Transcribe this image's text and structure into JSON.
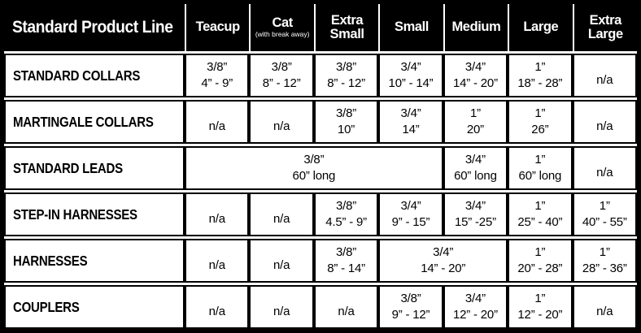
{
  "chart_data": {
    "type": "table",
    "title": "Standard Product Line",
    "legend_position": "none",
    "grid": "on",
    "colors": {
      "header_bg": "#000000",
      "header_text": "#ffffff",
      "cell_bg": "#ffffff",
      "border": "#000000",
      "text": "#000000"
    },
    "na_text": "n/a",
    "columns": [
      {
        "label": "Teacup",
        "sub": ""
      },
      {
        "label": "Cat",
        "sub": "(with break away)"
      },
      {
        "label": "Extra Small",
        "sub": ""
      },
      {
        "label": "Small",
        "sub": ""
      },
      {
        "label": "Medium",
        "sub": ""
      },
      {
        "label": "Large",
        "sub": ""
      },
      {
        "label": "Extra Large",
        "sub": ""
      }
    ],
    "rows": [
      {
        "label": "STANDARD COLLARS",
        "cells": [
          {
            "text": "3/8”\n4” - 9”",
            "span": 1
          },
          {
            "text": "3/8”\n8” - 12”",
            "span": 1
          },
          {
            "text": "3/8”\n8” - 12”",
            "span": 1
          },
          {
            "text": "3/4”\n10” - 14”",
            "span": 1
          },
          {
            "text": "3/4”\n14” - 20”",
            "span": 1
          },
          {
            "text": "1”\n18” - 28”",
            "span": 1
          },
          {
            "text": "n/a",
            "span": 1,
            "na": true
          }
        ]
      },
      {
        "label": "MARTINGALE COLLARS",
        "cells": [
          {
            "text": "n/a",
            "span": 1,
            "na": true
          },
          {
            "text": "n/a",
            "span": 1,
            "na": true
          },
          {
            "text": "3/8”\n10”",
            "span": 1
          },
          {
            "text": "3/4”\n14”",
            "span": 1
          },
          {
            "text": "1”\n20”",
            "span": 1
          },
          {
            "text": "1”\n26”",
            "span": 1
          },
          {
            "text": "n/a",
            "span": 1,
            "na": true
          }
        ]
      },
      {
        "label": "STANDARD LEADS",
        "cells": [
          {
            "text": "3/8”\n60” long",
            "span": 4
          },
          {
            "text": "3/4”\n60” long",
            "span": 1
          },
          {
            "text": "1”\n60” long",
            "span": 1
          },
          {
            "text": "n/a",
            "span": 1,
            "na": true
          }
        ]
      },
      {
        "label": "STEP-IN HARNESSES",
        "cells": [
          {
            "text": "n/a",
            "span": 1,
            "na": true
          },
          {
            "text": "n/a",
            "span": 1,
            "na": true
          },
          {
            "text": "3/8”\n4.5” - 9”",
            "span": 1
          },
          {
            "text": "3/4”\n9” - 15”",
            "span": 1
          },
          {
            "text": "3/4”\n15” -25”",
            "span": 1
          },
          {
            "text": "1”\n25” - 40”",
            "span": 1
          },
          {
            "text": "1”\n40” - 55”",
            "span": 1
          }
        ]
      },
      {
        "label": "HARNESSES",
        "cells": [
          {
            "text": "n/a",
            "span": 1,
            "na": true
          },
          {
            "text": "n/a",
            "span": 1,
            "na": true
          },
          {
            "text": "3/8”\n8” - 14”",
            "span": 1
          },
          {
            "text": "3/4”\n14” - 20”",
            "span": 2
          },
          {
            "text": "1”\n20” - 28”",
            "span": 1
          },
          {
            "text": "1”\n28” - 36”",
            "span": 1
          }
        ]
      },
      {
        "label": "COUPLERS",
        "cells": [
          {
            "text": "n/a",
            "span": 1,
            "na": true
          },
          {
            "text": "n/a",
            "span": 1,
            "na": true
          },
          {
            "text": "n/a",
            "span": 1,
            "na": true
          },
          {
            "text": "3/8”\n9” - 12”",
            "span": 1
          },
          {
            "text": "3/4”\n12” - 20”",
            "span": 1
          },
          {
            "text": "1”\n12” - 20”",
            "span": 1
          },
          {
            "text": "n/a",
            "span": 1,
            "na": true
          }
        ]
      }
    ]
  }
}
